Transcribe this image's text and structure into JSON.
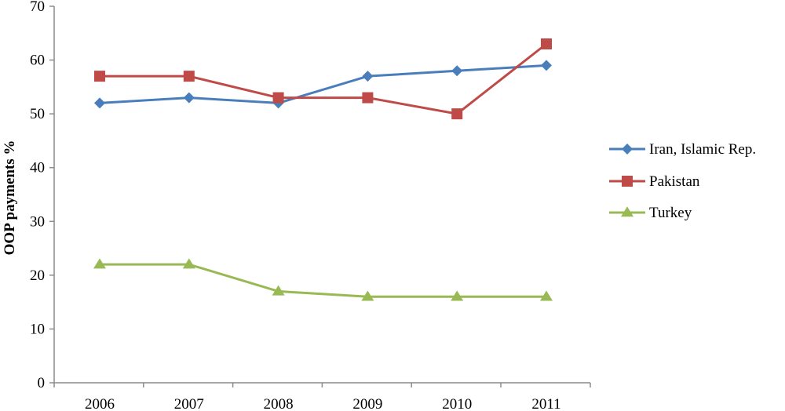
{
  "chart_data": {
    "type": "line",
    "title": "",
    "xlabel": "",
    "ylabel": "OOP payments %",
    "ylim": [
      0,
      70
    ],
    "yticks": [
      0,
      10,
      20,
      30,
      40,
      50,
      60,
      70
    ],
    "categories": [
      "2006",
      "2007",
      "2008",
      "2009",
      "2010",
      "2011"
    ],
    "grid": false,
    "legend_position": "right",
    "series": [
      {
        "name": "Iran, Islamic Rep.",
        "color": "#4a7ebb",
        "marker": "diamond",
        "values": [
          52,
          53,
          52,
          57,
          58,
          59
        ]
      },
      {
        "name": "Pakistan",
        "color": "#be4b48",
        "marker": "square",
        "values": [
          57,
          57,
          53,
          53,
          50,
          63
        ]
      },
      {
        "name": "Turkey",
        "color": "#98b954",
        "marker": "triangle",
        "values": [
          22,
          22,
          17,
          16,
          16,
          16
        ]
      }
    ]
  }
}
